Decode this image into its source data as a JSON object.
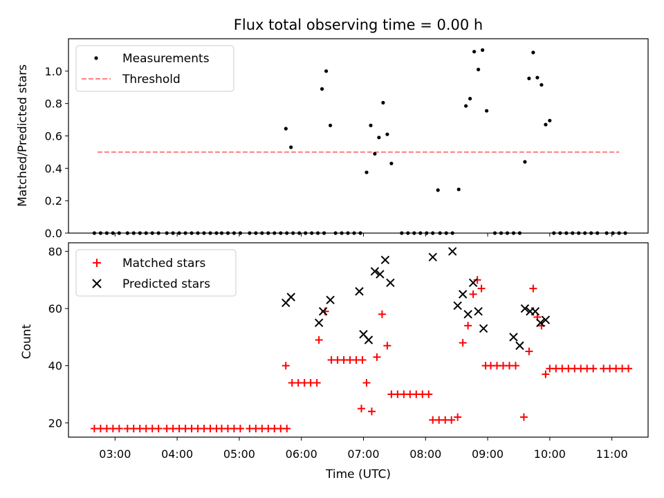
{
  "chart_data": [
    {
      "type": "scatter",
      "title": "Flux total observing time = 0.00 h",
      "xlabel": "",
      "ylabel": "Matched/Predicted stars",
      "xlim": [
        "02:15",
        "11:35"
      ],
      "ylim": [
        0,
        1.2
      ],
      "yticks": [
        0.0,
        0.2,
        0.4,
        0.6,
        0.8,
        1.0
      ],
      "grid": false,
      "legend_position": "top-left",
      "threshold": {
        "name": "Threshold",
        "value": 0.5,
        "x_range": [
          "02:43",
          "11:07"
        ],
        "color": "#ff7f7f",
        "style": "dashed"
      },
      "series": [
        {
          "name": "Measurements",
          "color": "#000000",
          "marker": "dot",
          "points": [
            [
              "02:40",
              0
            ],
            [
              "02:46",
              0
            ],
            [
              "02:52",
              0
            ],
            [
              "02:58",
              0
            ],
            [
              "03:04",
              0
            ],
            [
              "03:12",
              0
            ],
            [
              "03:18",
              0
            ],
            [
              "03:24",
              0
            ],
            [
              "03:30",
              0
            ],
            [
              "03:36",
              0
            ],
            [
              "03:42",
              0
            ],
            [
              "03:50",
              0
            ],
            [
              "03:56",
              0
            ],
            [
              "04:02",
              0
            ],
            [
              "04:08",
              0
            ],
            [
              "04:14",
              0
            ],
            [
              "04:20",
              0
            ],
            [
              "04:26",
              0
            ],
            [
              "04:32",
              0
            ],
            [
              "04:38",
              0
            ],
            [
              "04:43",
              0
            ],
            [
              "04:49",
              0
            ],
            [
              "04:55",
              0
            ],
            [
              "05:01",
              0
            ],
            [
              "05:10",
              0
            ],
            [
              "05:16",
              0
            ],
            [
              "05:22",
              0
            ],
            [
              "05:28",
              0
            ],
            [
              "05:34",
              0
            ],
            [
              "05:40",
              0
            ],
            [
              "05:46",
              0
            ],
            [
              "05:52",
              0
            ],
            [
              "05:58",
              0
            ],
            [
              "05:45",
              0.645
            ],
            [
              "05:50",
              0.53
            ],
            [
              "06:04",
              0
            ],
            [
              "06:10",
              0
            ],
            [
              "06:16",
              0
            ],
            [
              "06:22",
              0
            ],
            [
              "06:20",
              0.89
            ],
            [
              "06:24",
              1.0
            ],
            [
              "06:28",
              0.665
            ],
            [
              "06:33",
              0
            ],
            [
              "06:39",
              0
            ],
            [
              "06:45",
              0
            ],
            [
              "06:51",
              0
            ],
            [
              "06:57",
              0
            ],
            [
              "07:03",
              0.375
            ],
            [
              "07:07",
              0.665
            ],
            [
              "07:11",
              0.49
            ],
            [
              "07:15",
              0.59
            ],
            [
              "07:19",
              0.805
            ],
            [
              "07:23",
              0.61
            ],
            [
              "07:27",
              0.43
            ],
            [
              "07:37",
              0
            ],
            [
              "07:43",
              0
            ],
            [
              "07:49",
              0
            ],
            [
              "07:55",
              0
            ],
            [
              "08:01",
              0
            ],
            [
              "08:07",
              0
            ],
            [
              "08:12",
              0.265
            ],
            [
              "08:14",
              0
            ],
            [
              "08:20",
              0
            ],
            [
              "08:26",
              0
            ],
            [
              "08:32",
              0.27
            ],
            [
              "08:39",
              0.785
            ],
            [
              "08:43",
              0.83
            ],
            [
              "08:47",
              1.12
            ],
            [
              "08:51",
              1.01
            ],
            [
              "08:55",
              1.13
            ],
            [
              "08:59",
              0.755
            ],
            [
              "09:07",
              0
            ],
            [
              "09:13",
              0
            ],
            [
              "09:19",
              0
            ],
            [
              "09:25",
              0
            ],
            [
              "09:31",
              0
            ],
            [
              "09:36",
              0.44
            ],
            [
              "09:40",
              0.955
            ],
            [
              "09:44",
              1.115
            ],
            [
              "09:48",
              0.96
            ],
            [
              "09:52",
              0.915
            ],
            [
              "09:56",
              0.67
            ],
            [
              "10:00",
              0.695
            ],
            [
              "10:04",
              0
            ],
            [
              "10:10",
              0
            ],
            [
              "10:16",
              0
            ],
            [
              "10:22",
              0
            ],
            [
              "10:28",
              0
            ],
            [
              "10:34",
              0
            ],
            [
              "10:40",
              0
            ],
            [
              "10:46",
              0
            ],
            [
              "10:55",
              0
            ],
            [
              "11:01",
              0
            ],
            [
              "11:07",
              0
            ],
            [
              "11:13",
              0
            ]
          ]
        }
      ]
    },
    {
      "type": "scatter",
      "title": "",
      "xlabel": "Time (UTC)",
      "ylabel": "Count",
      "xlim": [
        "02:15",
        "11:35"
      ],
      "ylim": [
        15,
        83
      ],
      "yticks": [
        20,
        40,
        60,
        80
      ],
      "xticks": [
        "03:00",
        "04:00",
        "05:00",
        "06:00",
        "07:00",
        "08:00",
        "09:00",
        "10:00",
        "11:00"
      ],
      "grid": false,
      "legend_position": "top-left",
      "series": [
        {
          "name": "Matched stars",
          "color": "#ff0000",
          "marker": "plus",
          "points": [
            [
              "02:40",
              18
            ],
            [
              "02:46",
              18
            ],
            [
              "02:52",
              18
            ],
            [
              "02:58",
              18
            ],
            [
              "03:04",
              18
            ],
            [
              "03:12",
              18
            ],
            [
              "03:18",
              18
            ],
            [
              "03:24",
              18
            ],
            [
              "03:30",
              18
            ],
            [
              "03:36",
              18
            ],
            [
              "03:42",
              18
            ],
            [
              "03:50",
              18
            ],
            [
              "03:56",
              18
            ],
            [
              "04:02",
              18
            ],
            [
              "04:08",
              18
            ],
            [
              "04:14",
              18
            ],
            [
              "04:20",
              18
            ],
            [
              "04:26",
              18
            ],
            [
              "04:32",
              18
            ],
            [
              "04:38",
              18
            ],
            [
              "04:43",
              18
            ],
            [
              "04:49",
              18
            ],
            [
              "04:55",
              18
            ],
            [
              "05:01",
              18
            ],
            [
              "05:10",
              18
            ],
            [
              "05:16",
              18
            ],
            [
              "05:22",
              18
            ],
            [
              "05:28",
              18
            ],
            [
              "05:34",
              18
            ],
            [
              "05:40",
              18
            ],
            [
              "05:46",
              18
            ],
            [
              "05:45",
              40
            ],
            [
              "05:51",
              34
            ],
            [
              "05:57",
              34
            ],
            [
              "06:03",
              34
            ],
            [
              "06:09",
              34
            ],
            [
              "06:15",
              34
            ],
            [
              "06:17",
              49
            ],
            [
              "06:23",
              59
            ],
            [
              "06:29",
              42
            ],
            [
              "06:35",
              42
            ],
            [
              "06:41",
              42
            ],
            [
              "06:47",
              42
            ],
            [
              "06:53",
              42
            ],
            [
              "06:59",
              42
            ],
            [
              "06:58",
              25
            ],
            [
              "07:03",
              34
            ],
            [
              "07:08",
              24
            ],
            [
              "07:13",
              43
            ],
            [
              "07:18",
              58
            ],
            [
              "07:23",
              47
            ],
            [
              "07:27",
              30
            ],
            [
              "07:33",
              30
            ],
            [
              "07:39",
              30
            ],
            [
              "07:45",
              30
            ],
            [
              "07:51",
              30
            ],
            [
              "07:57",
              30
            ],
            [
              "08:03",
              30
            ],
            [
              "08:07",
              21
            ],
            [
              "08:13",
              21
            ],
            [
              "08:19",
              21
            ],
            [
              "08:25",
              21
            ],
            [
              "08:31",
              22
            ],
            [
              "08:36",
              48
            ],
            [
              "08:41",
              54
            ],
            [
              "08:46",
              65
            ],
            [
              "08:50",
              70
            ],
            [
              "08:54",
              67
            ],
            [
              "08:58",
              40
            ],
            [
              "09:03",
              40
            ],
            [
              "09:09",
              40
            ],
            [
              "09:15",
              40
            ],
            [
              "09:21",
              40
            ],
            [
              "09:27",
              40
            ],
            [
              "09:35",
              22
            ],
            [
              "09:40",
              45
            ],
            [
              "09:44",
              67
            ],
            [
              "09:48",
              57
            ],
            [
              "09:52",
              54
            ],
            [
              "09:56",
              37
            ],
            [
              "10:00",
              39
            ],
            [
              "10:06",
              39
            ],
            [
              "10:12",
              39
            ],
            [
              "10:18",
              39
            ],
            [
              "10:24",
              39
            ],
            [
              "10:30",
              39
            ],
            [
              "10:36",
              39
            ],
            [
              "10:42",
              39
            ],
            [
              "10:52",
              39
            ],
            [
              "10:58",
              39
            ],
            [
              "11:04",
              39
            ],
            [
              "11:10",
              39
            ],
            [
              "11:16",
              39
            ]
          ]
        },
        {
          "name": "Predicted stars",
          "color": "#000000",
          "marker": "x",
          "points": [
            [
              "05:45",
              62
            ],
            [
              "05:50",
              64
            ],
            [
              "06:17",
              55
            ],
            [
              "06:21",
              59
            ],
            [
              "06:28",
              63
            ],
            [
              "06:56",
              66
            ],
            [
              "07:00",
              51
            ],
            [
              "07:05",
              49
            ],
            [
              "07:11",
              73
            ],
            [
              "07:16",
              72
            ],
            [
              "07:21",
              77
            ],
            [
              "07:26",
              69
            ],
            [
              "08:07",
              78
            ],
            [
              "08:26",
              80
            ],
            [
              "08:31",
              61
            ],
            [
              "08:36",
              65
            ],
            [
              "08:41",
              58
            ],
            [
              "08:46",
              69
            ],
            [
              "08:51",
              59
            ],
            [
              "08:56",
              53
            ],
            [
              "09:25",
              50
            ],
            [
              "09:31",
              47
            ],
            [
              "09:36",
              60
            ],
            [
              "09:41",
              59
            ],
            [
              "09:46",
              59
            ],
            [
              "09:51",
              55
            ],
            [
              "09:56",
              56
            ]
          ]
        }
      ]
    }
  ]
}
